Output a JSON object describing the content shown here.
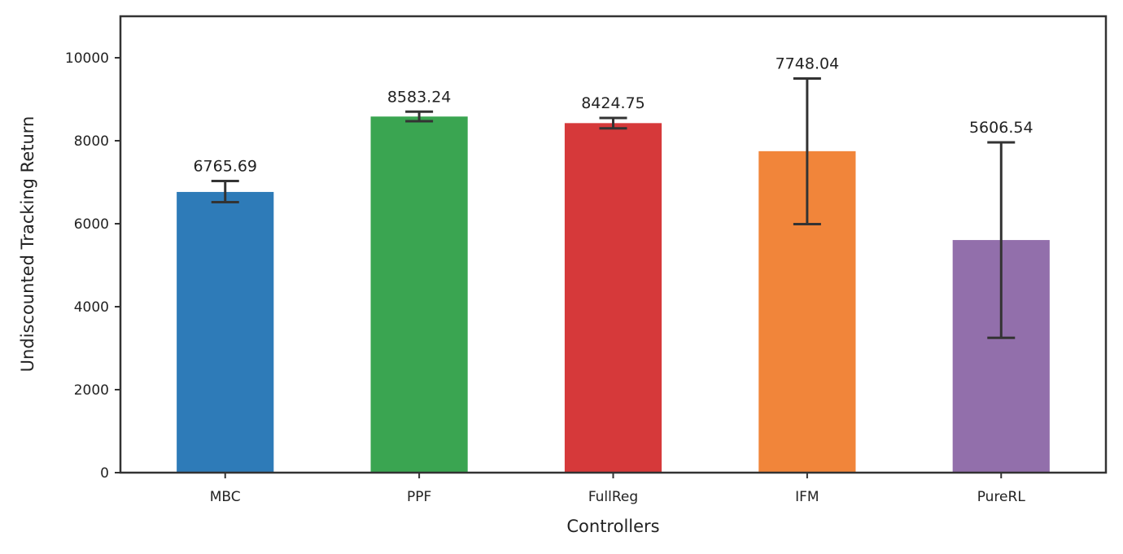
{
  "chart_data": {
    "type": "bar",
    "title": "",
    "xlabel": "Controllers",
    "ylabel": "Undiscounted Tracking Return",
    "categories": [
      "MBC",
      "PPF",
      "FullReg",
      "IFM",
      "PureRL"
    ],
    "values": [
      6765.69,
      8583.24,
      8424.75,
      7748.04,
      5606.54
    ],
    "value_labels": [
      "6765.69",
      "8583.24",
      "8424.75",
      "7748.04",
      "5606.54"
    ],
    "error_low": [
      6520,
      8470,
      8300,
      5990,
      3250
    ],
    "error_high": [
      7030,
      8700,
      8550,
      9500,
      7960
    ],
    "colors": [
      "#2e7bb8",
      "#3aa551",
      "#d6393a",
      "#f1853a",
      "#926fab"
    ],
    "ylim": [
      0,
      11000
    ],
    "yticks": [
      0,
      2000,
      4000,
      6000,
      8000,
      10000
    ],
    "ytick_labels": [
      "0",
      "2000",
      "4000",
      "6000",
      "8000",
      "10000"
    ],
    "grid": false,
    "legend": "none"
  }
}
